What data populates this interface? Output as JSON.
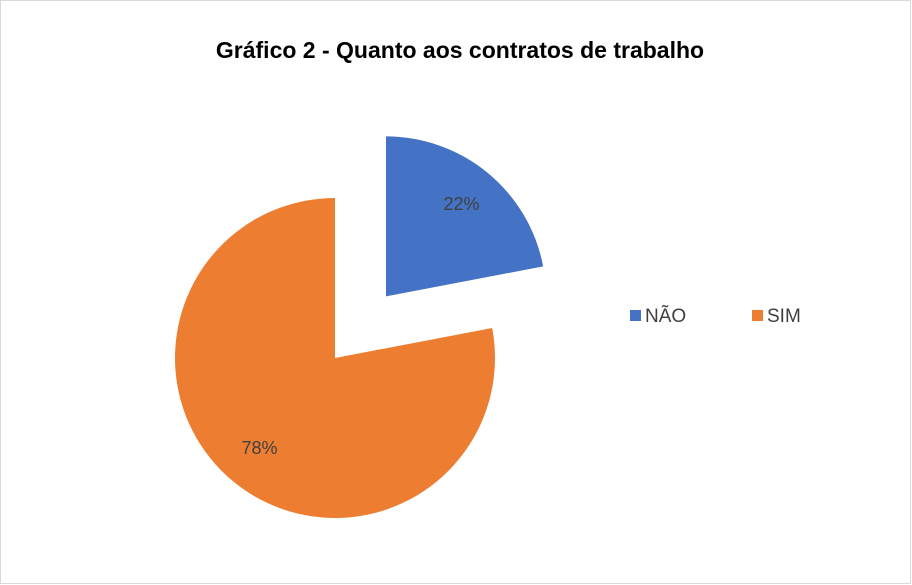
{
  "chart_data": {
    "type": "pie",
    "title": "Gráfico 2 - Quanto aos contratos de trabalho",
    "categories": [
      "NÃO",
      "SIM"
    ],
    "values": [
      22,
      78
    ],
    "value_labels": [
      "22%",
      "78%"
    ],
    "colors": [
      "#4472c4",
      "#ed7d31"
    ],
    "exploded": [
      true,
      false
    ],
    "legend": "right"
  }
}
